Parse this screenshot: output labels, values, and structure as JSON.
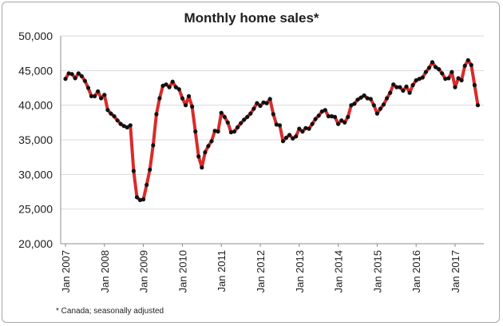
{
  "chart_data": {
    "type": "line",
    "title": "Monthly home sales*",
    "footnote": "* Canada; seasonally adjusted",
    "xlabel": "",
    "ylabel": "",
    "ylim": [
      20000,
      50000
    ],
    "yticks": [
      20000,
      25000,
      30000,
      35000,
      40000,
      45000,
      50000
    ],
    "ytick_labels": [
      "20,000",
      "25,000",
      "30,000",
      "35,000",
      "40,000",
      "45,000",
      "50,000"
    ],
    "xtick_labels": [
      "Jan 2007",
      "Jan 2008",
      "Jan 2009",
      "Jan 2010",
      "Jan 2011",
      "Jan 2012",
      "Jan 2013",
      "Jan 2014",
      "Jan 2015",
      "Jan 2016",
      "Jan 2017"
    ],
    "grid": true,
    "legend": "none",
    "line_color": "#d92b2b",
    "marker_color": "#111111",
    "x_start": "2007-01",
    "series": [
      {
        "values": [
          43800,
          44600,
          44500,
          43900,
          44600,
          44200,
          43500,
          42500,
          41300,
          41300,
          42000,
          41000,
          41500,
          39300,
          38800,
          38400,
          37800,
          37300,
          37000,
          36800,
          37100,
          30500,
          26700,
          26300,
          26400,
          28500,
          30700,
          34200,
          38700,
          41000,
          42800,
          43000,
          42600,
          43400,
          42600,
          42300,
          41000,
          40000,
          41300,
          39800,
          36200,
          32600,
          31000,
          33200,
          34100,
          34800,
          36300,
          36200,
          38900,
          38300,
          37500,
          36100,
          36200,
          36800,
          37400,
          37900,
          38300,
          38800,
          39500,
          40300,
          39900,
          40400,
          40300,
          40900,
          38700,
          37200,
          37100,
          34800,
          35300,
          35700,
          35200,
          35500,
          36600,
          36200,
          36700,
          36600,
          37300,
          38000,
          38500,
          39100,
          39300,
          38400,
          38400,
          38300,
          37300,
          37800,
          37500,
          38300,
          40000,
          40200,
          40800,
          41100,
          41400,
          41000,
          40900,
          40000,
          38800,
          39500,
          40100,
          41000,
          41800,
          43000,
          42600,
          42600,
          42100,
          42700,
          41800,
          42900,
          43600,
          43800,
          44000,
          44800,
          45400,
          46200,
          45500,
          45200,
          44600,
          43800,
          43900,
          44800,
          42600,
          43900,
          43600,
          45700,
          46500,
          45800,
          42900,
          40000
        ]
      }
    ]
  }
}
